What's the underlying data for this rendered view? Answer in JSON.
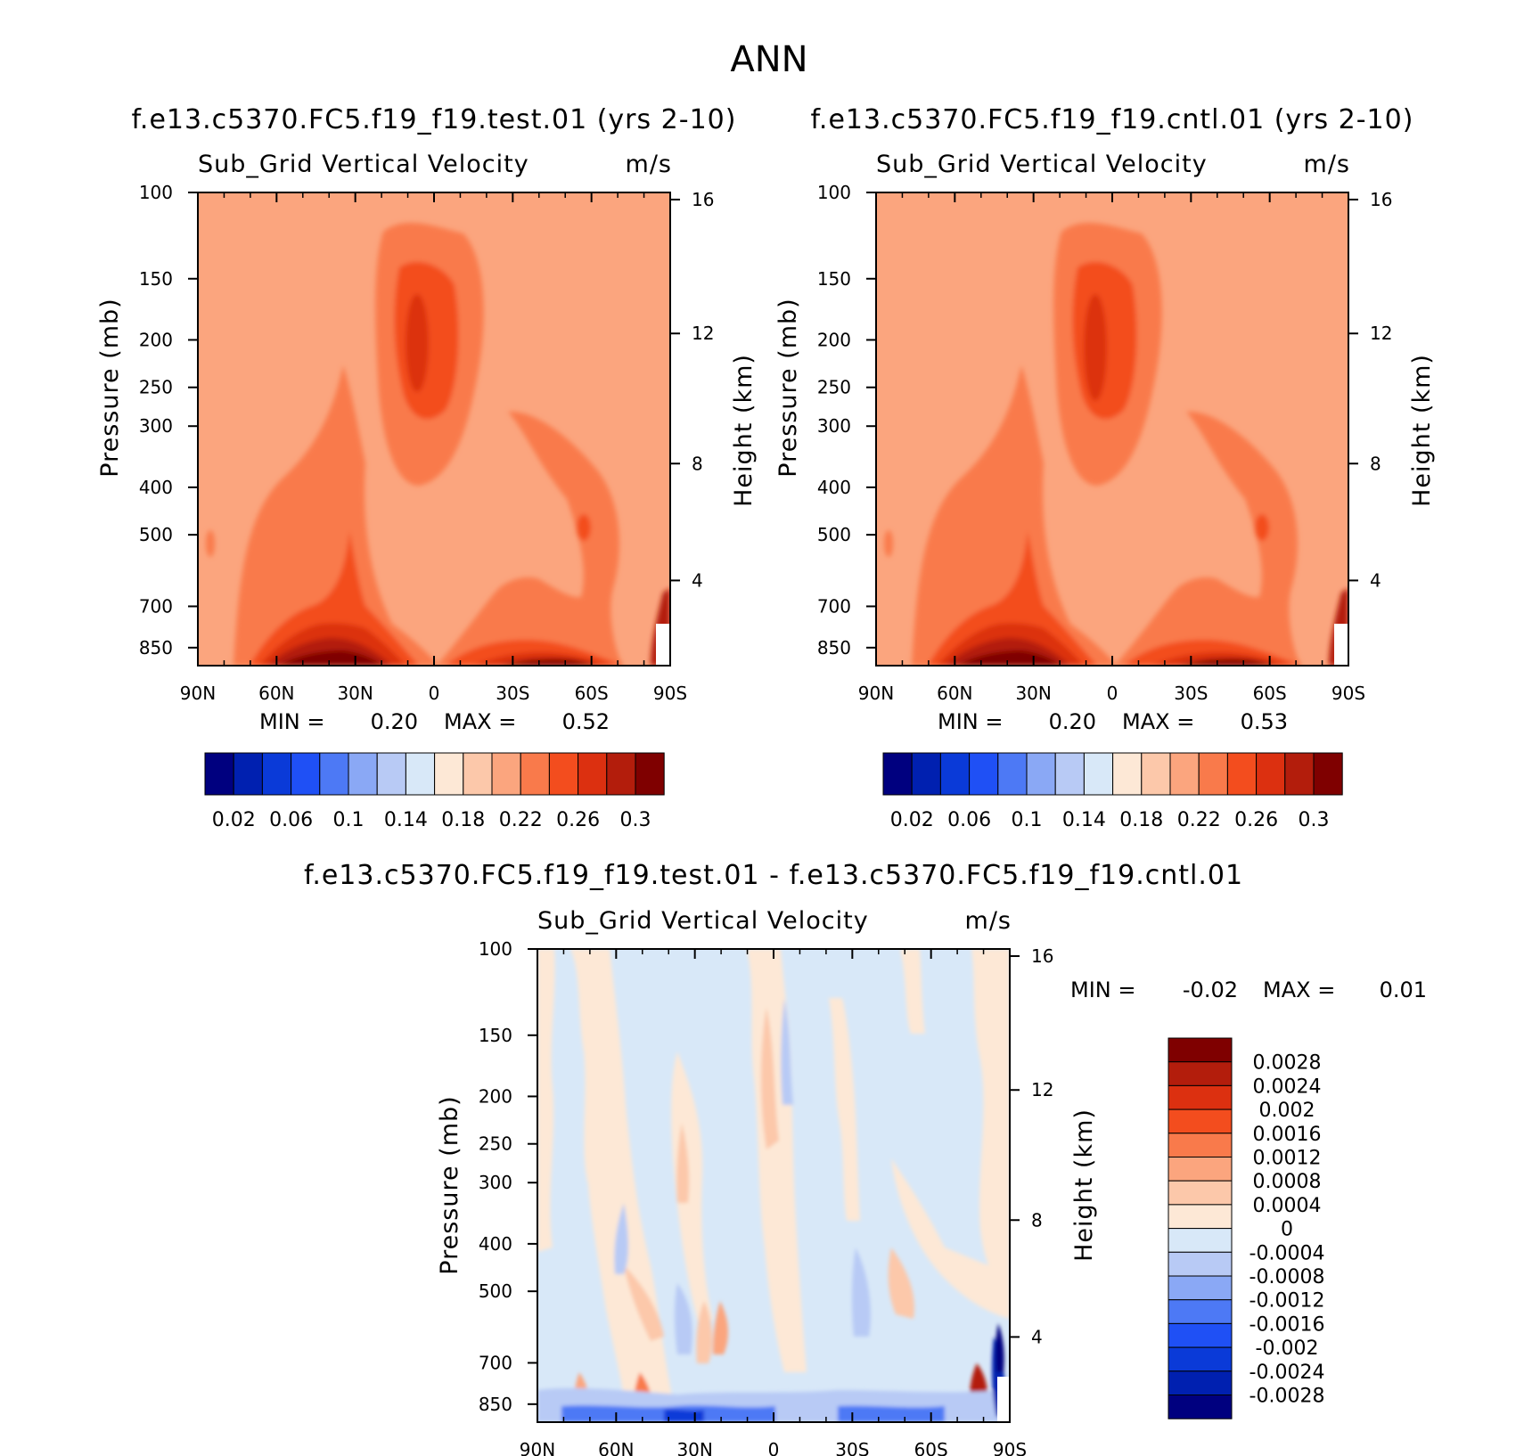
{
  "chart_data": {
    "title": "ANN",
    "panels": [
      {
        "type": "heatmap",
        "case_title": "f.e13.c5370.FC5.f19_f19.test.01 (yrs 2-10)",
        "variable": "Sub_Grid Vertical Velocity",
        "units": "m/s",
        "ylabel": "Pressure (mb)",
        "ylabel_right": "Height (km)",
        "xticks": [
          "90N",
          "60N",
          "30N",
          "0",
          "30S",
          "60S",
          "90S"
        ],
        "yticks": [
          "100",
          "150",
          "200",
          "250",
          "300",
          "400",
          "500",
          "700",
          "850"
        ],
        "yticks_right": [
          "16",
          "12",
          "8",
          "4"
        ],
        "stats": {
          "min_label": "MIN =",
          "min": "0.20",
          "max_label": "MAX =",
          "max": "0.52"
        },
        "colorbar_labels": [
          "0.02",
          "0.06",
          "0.1",
          "0.14",
          "0.18",
          "0.22",
          "0.26",
          "0.3"
        ]
      },
      {
        "type": "heatmap",
        "case_title": "f.e13.c5370.FC5.f19_f19.cntl.01 (yrs 2-10)",
        "variable": "Sub_Grid Vertical Velocity",
        "units": "m/s",
        "ylabel": "Pressure (mb)",
        "ylabel_right": "Height (km)",
        "xticks": [
          "90N",
          "60N",
          "30N",
          "0",
          "30S",
          "60S",
          "90S"
        ],
        "yticks": [
          "100",
          "150",
          "200",
          "250",
          "300",
          "400",
          "500",
          "700",
          "850"
        ],
        "yticks_right": [
          "16",
          "12",
          "8",
          "4"
        ],
        "stats": {
          "min_label": "MIN =",
          "min": "0.20",
          "max_label": "MAX =",
          "max": "0.53"
        },
        "colorbar_labels": [
          "0.02",
          "0.06",
          "0.1",
          "0.14",
          "0.18",
          "0.22",
          "0.26",
          "0.3"
        ]
      },
      {
        "type": "heatmap",
        "case_title": "f.e13.c5370.FC5.f19_f19.test.01 - f.e13.c5370.FC5.f19_f19.cntl.01",
        "variable": "Sub_Grid Vertical Velocity",
        "units": "m/s",
        "ylabel": "Pressure (mb)",
        "ylabel_right": "Height (km)",
        "xticks": [
          "90N",
          "60N",
          "30N",
          "0",
          "30S",
          "60S",
          "90S"
        ],
        "yticks": [
          "100",
          "150",
          "200",
          "250",
          "300",
          "400",
          "500",
          "700",
          "850"
        ],
        "yticks_right": [
          "16",
          "12",
          "8",
          "4"
        ],
        "stats": {
          "min_label": "MIN =",
          "min": "-0.02",
          "max_label": "MAX =",
          "max": "0.01"
        },
        "colorbar_labels": [
          "0.0028",
          "0.0024",
          "0.002",
          "0.0016",
          "0.0012",
          "0.0008",
          "0.0004",
          "0",
          "-0.0004",
          "-0.0008",
          "-0.0012",
          "-0.0016",
          "-0.002",
          "-0.0024",
          "-0.0028"
        ]
      }
    ],
    "colors": {
      "absolute_scale": [
        "#00007f",
        "#0020b0",
        "#0a3ad8",
        "#1f50f5",
        "#4d79f5",
        "#8aa8f5",
        "#b8caf5",
        "#d8e8f8",
        "#fde8d6",
        "#fcc8aa",
        "#fba57e",
        "#f97a4b",
        "#f34d1e",
        "#dc3010",
        "#b31d0c",
        "#7f0000"
      ],
      "diff_scale": [
        "#00007f",
        "#0020b0",
        "#0a3ad8",
        "#1f50f5",
        "#4d79f5",
        "#8aa8f5",
        "#b8caf5",
        "#d8e8f8",
        "#fde8d6",
        "#fcc8aa",
        "#fba57e",
        "#f97a4b",
        "#f34d1e",
        "#dc3010",
        "#b31d0c",
        "#7f0000"
      ]
    }
  }
}
